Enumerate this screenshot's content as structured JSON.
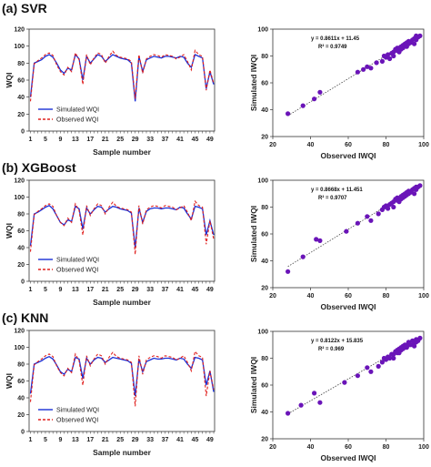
{
  "chart_data": [
    {
      "type": "line",
      "panel_label": "(a) SVR",
      "xlabel": "Sample number",
      "ylabel": "WQI",
      "ylim": [
        0,
        120
      ],
      "yticks": [
        0,
        20,
        40,
        60,
        80,
        100,
        120
      ],
      "x_tick_labels": [
        "1",
        "5",
        "9",
        "13",
        "17",
        "21",
        "25",
        "29",
        "33",
        "37",
        "41",
        "45",
        "49"
      ],
      "x": [
        1,
        2,
        3,
        4,
        5,
        6,
        7,
        8,
        9,
        10,
        11,
        12,
        13,
        14,
        15,
        16,
        17,
        18,
        19,
        20,
        21,
        22,
        23,
        24,
        25,
        26,
        27,
        28,
        29,
        30,
        31,
        32,
        33,
        34,
        35,
        36,
        37,
        38,
        39,
        40,
        41,
        42,
        43,
        44,
        45,
        46,
        47,
        48,
        49,
        50
      ],
      "series": [
        {
          "name": "Simulated WQI",
          "color": "#1a2fd6",
          "style": "solid",
          "values": [
            40,
            80,
            82,
            84,
            88,
            90,
            87,
            80,
            72,
            68,
            74,
            72,
            90,
            85,
            60,
            88,
            80,
            85,
            90,
            88,
            82,
            86,
            90,
            88,
            86,
            85,
            84,
            80,
            35,
            88,
            70,
            84,
            86,
            88,
            87,
            86,
            88,
            88,
            87,
            86,
            88,
            87,
            80,
            75,
            90,
            88,
            86,
            50,
            70,
            55
          ]
        },
        {
          "name": "Observed WQI",
          "color": "#e0201e",
          "style": "dashed",
          "values": [
            35,
            79,
            83,
            86,
            90,
            92,
            89,
            78,
            70,
            66,
            75,
            70,
            92,
            84,
            55,
            90,
            78,
            86,
            92,
            90,
            80,
            88,
            94,
            89,
            87,
            86,
            85,
            82,
            38,
            90,
            68,
            85,
            88,
            90,
            89,
            87,
            90,
            89,
            88,
            85,
            87,
            90,
            82,
            72,
            95,
            90,
            88,
            48,
            72,
            56
          ]
        }
      ]
    },
    {
      "type": "scatter",
      "panel_label": "(a) SVR",
      "xlabel": "Observed IWQI",
      "ylabel": "Simulated IWQI",
      "xlim": [
        20,
        100
      ],
      "ylim": [
        20,
        100
      ],
      "xticks": [
        20,
        40,
        60,
        80,
        100
      ],
      "yticks": [
        20,
        40,
        60,
        80,
        100
      ],
      "equation": "y = 0.8611x + 11.45",
      "r2": "R² = 0.9749",
      "trend": {
        "slope": 0.8611,
        "intercept": 11.45
      },
      "point_color": "#6a14b8",
      "points": [
        [
          28,
          37
        ],
        [
          36,
          43
        ],
        [
          42,
          48
        ],
        [
          45,
          53
        ],
        [
          65,
          68
        ],
        [
          68,
          70
        ],
        [
          70,
          72
        ],
        [
          72,
          71
        ],
        [
          75,
          75
        ],
        [
          78,
          76
        ],
        [
          79,
          80
        ],
        [
          80,
          79
        ],
        [
          81,
          81
        ],
        [
          82,
          78
        ],
        [
          83,
          82
        ],
        [
          84,
          83
        ],
        [
          84,
          80
        ],
        [
          85,
          85
        ],
        [
          86,
          84
        ],
        [
          86,
          86
        ],
        [
          87,
          86
        ],
        [
          87,
          83
        ],
        [
          88,
          87
        ],
        [
          88,
          85
        ],
        [
          89,
          88
        ],
        [
          89,
          86
        ],
        [
          90,
          88
        ],
        [
          90,
          89
        ],
        [
          91,
          87
        ],
        [
          91,
          90
        ],
        [
          92,
          89
        ],
        [
          92,
          91
        ],
        [
          93,
          90
        ],
        [
          94,
          92
        ],
        [
          95,
          93
        ],
        [
          96,
          92
        ],
        [
          96,
          95
        ],
        [
          97,
          94
        ],
        [
          98,
          95
        ],
        [
          95,
          89
        ]
      ]
    },
    {
      "type": "line",
      "panel_label": "(b) XGBoost",
      "xlabel": "Sample number",
      "ylabel": "WQI",
      "ylim": [
        0,
        120
      ],
      "yticks": [
        0,
        20,
        40,
        60,
        80,
        100,
        120
      ],
      "x_tick_labels": [
        "1",
        "5",
        "9",
        "13",
        "17",
        "21",
        "25",
        "29",
        "33",
        "37",
        "41",
        "45",
        "49"
      ],
      "x": [
        1,
        2,
        3,
        4,
        5,
        6,
        7,
        8,
        9,
        10,
        11,
        12,
        13,
        14,
        15,
        16,
        17,
        18,
        19,
        20,
        21,
        22,
        23,
        24,
        25,
        26,
        27,
        28,
        29,
        30,
        31,
        32,
        33,
        34,
        35,
        36,
        37,
        38,
        39,
        40,
        41,
        42,
        43,
        44,
        45,
        46,
        47,
        48,
        49,
        50
      ],
      "series": [
        {
          "name": "Simulated WQI",
          "color": "#1a2fd6",
          "style": "solid",
          "values": [
            42,
            80,
            82,
            85,
            88,
            90,
            86,
            78,
            70,
            67,
            73,
            71,
            89,
            86,
            62,
            87,
            80,
            85,
            89,
            88,
            82,
            86,
            89,
            88,
            86,
            85,
            84,
            81,
            40,
            87,
            70,
            83,
            86,
            87,
            87,
            86,
            87,
            87,
            86,
            85,
            88,
            87,
            80,
            74,
            89,
            88,
            86,
            55,
            72,
            55
          ]
        },
        {
          "name": "Observed WQI",
          "color": "#e0201e",
          "style": "dashed",
          "values": [
            35,
            79,
            83,
            86,
            90,
            92,
            89,
            78,
            70,
            66,
            75,
            70,
            92,
            84,
            55,
            90,
            78,
            86,
            92,
            90,
            80,
            88,
            94,
            89,
            87,
            86,
            85,
            82,
            32,
            90,
            68,
            85,
            88,
            90,
            89,
            87,
            90,
            89,
            88,
            85,
            87,
            90,
            82,
            72,
            95,
            90,
            88,
            44,
            72,
            50
          ]
        }
      ]
    },
    {
      "type": "scatter",
      "panel_label": "(b) XGBoost",
      "xlabel": "Observed IWQI",
      "ylabel": "Simulated IWQI",
      "xlim": [
        20,
        100
      ],
      "ylim": [
        20,
        100
      ],
      "xticks": [
        20,
        40,
        60,
        80,
        100
      ],
      "yticks": [
        20,
        40,
        60,
        80,
        100
      ],
      "equation": "y = 0.8668x + 11.451",
      "r2": "R² = 0.9707",
      "trend": {
        "slope": 0.8668,
        "intercept": 11.451
      },
      "point_color": "#6a14b8",
      "points": [
        [
          28,
          32
        ],
        [
          36,
          43
        ],
        [
          43,
          56
        ],
        [
          45,
          55
        ],
        [
          59,
          62
        ],
        [
          65,
          68
        ],
        [
          70,
          73
        ],
        [
          72,
          70
        ],
        [
          76,
          75
        ],
        [
          78,
          78
        ],
        [
          79,
          80
        ],
        [
          80,
          81
        ],
        [
          81,
          79
        ],
        [
          82,
          82
        ],
        [
          83,
          83
        ],
        [
          84,
          84
        ],
        [
          84,
          80
        ],
        [
          85,
          86
        ],
        [
          86,
          85
        ],
        [
          86,
          87
        ],
        [
          87,
          86
        ],
        [
          87,
          84
        ],
        [
          88,
          88
        ],
        [
          88,
          86
        ],
        [
          89,
          89
        ],
        [
          89,
          87
        ],
        [
          90,
          90
        ],
        [
          90,
          88
        ],
        [
          91,
          89
        ],
        [
          91,
          91
        ],
        [
          92,
          90
        ],
        [
          92,
          92
        ],
        [
          93,
          91
        ],
        [
          94,
          93
        ],
        [
          95,
          94
        ],
        [
          96,
          93
        ],
        [
          96,
          95
        ],
        [
          97,
          95
        ],
        [
          98,
          96
        ],
        [
          95,
          90
        ]
      ]
    },
    {
      "type": "line",
      "panel_label": "(c) KNN",
      "xlabel": "Sample number",
      "ylabel": "WQI",
      "ylim": [
        0,
        120
      ],
      "yticks": [
        0,
        20,
        40,
        60,
        80,
        100,
        120
      ],
      "x_tick_labels": [
        "1",
        "5",
        "9",
        "13",
        "17",
        "21",
        "25",
        "29",
        "33",
        "37",
        "41",
        "45",
        "49"
      ],
      "x": [
        1,
        2,
        3,
        4,
        5,
        6,
        7,
        8,
        9,
        10,
        11,
        12,
        13,
        14,
        15,
        16,
        17,
        18,
        19,
        20,
        21,
        22,
        23,
        24,
        25,
        26,
        27,
        28,
        29,
        30,
        31,
        32,
        33,
        34,
        35,
        36,
        37,
        38,
        39,
        40,
        41,
        42,
        43,
        44,
        45,
        46,
        47,
        48,
        49,
        50
      ],
      "series": [
        {
          "name": "Simulated WQI",
          "color": "#1a2fd6",
          "style": "solid",
          "values": [
            45,
            80,
            82,
            84,
            87,
            89,
            86,
            79,
            71,
            68,
            74,
            71,
            88,
            86,
            63,
            87,
            80,
            85,
            88,
            87,
            82,
            85,
            88,
            87,
            86,
            85,
            84,
            81,
            42,
            86,
            71,
            83,
            85,
            87,
            86,
            86,
            87,
            87,
            86,
            85,
            87,
            86,
            80,
            75,
            88,
            87,
            85,
            55,
            72,
            47
          ]
        },
        {
          "name": "Observed WQI",
          "color": "#e0201e",
          "style": "dashed",
          "values": [
            35,
            79,
            83,
            86,
            90,
            92,
            89,
            78,
            70,
            66,
            75,
            70,
            92,
            84,
            55,
            90,
            78,
            86,
            92,
            90,
            80,
            88,
            94,
            89,
            87,
            86,
            85,
            82,
            30,
            90,
            68,
            85,
            88,
            90,
            89,
            87,
            90,
            89,
            88,
            85,
            87,
            90,
            82,
            72,
            95,
            90,
            88,
            42,
            72,
            50
          ]
        }
      ]
    },
    {
      "type": "scatter",
      "panel_label": "(c) KNN",
      "xlabel": "Observed IWQI",
      "ylabel": "Simulated IWQI",
      "xlim": [
        20,
        100
      ],
      "ylim": [
        20,
        100
      ],
      "xticks": [
        20,
        40,
        60,
        80,
        100
      ],
      "yticks": [
        20,
        40,
        60,
        80,
        100
      ],
      "equation": "y = 0.8122x + 15.835",
      "r2": "R² = 0.969",
      "trend": {
        "slope": 0.8122,
        "intercept": 15.835
      },
      "point_color": "#6a14b8",
      "points": [
        [
          28,
          39
        ],
        [
          35,
          45
        ],
        [
          42,
          54
        ],
        [
          45,
          47
        ],
        [
          58,
          62
        ],
        [
          65,
          67
        ],
        [
          70,
          73
        ],
        [
          72,
          70
        ],
        [
          76,
          74
        ],
        [
          78,
          77
        ],
        [
          79,
          80
        ],
        [
          80,
          79
        ],
        [
          81,
          81
        ],
        [
          82,
          80
        ],
        [
          83,
          83
        ],
        [
          84,
          83
        ],
        [
          84,
          80
        ],
        [
          85,
          85
        ],
        [
          86,
          84
        ],
        [
          86,
          86
        ],
        [
          87,
          87
        ],
        [
          87,
          84
        ],
        [
          88,
          88
        ],
        [
          88,
          86
        ],
        [
          89,
          89
        ],
        [
          89,
          87
        ],
        [
          90,
          90
        ],
        [
          90,
          88
        ],
        [
          91,
          88
        ],
        [
          91,
          90
        ],
        [
          92,
          90
        ],
        [
          92,
          92
        ],
        [
          93,
          90
        ],
        [
          94,
          93
        ],
        [
          95,
          91
        ],
        [
          96,
          92
        ],
        [
          96,
          94
        ],
        [
          97,
          93
        ],
        [
          98,
          95
        ],
        [
          95,
          89
        ]
      ]
    }
  ]
}
